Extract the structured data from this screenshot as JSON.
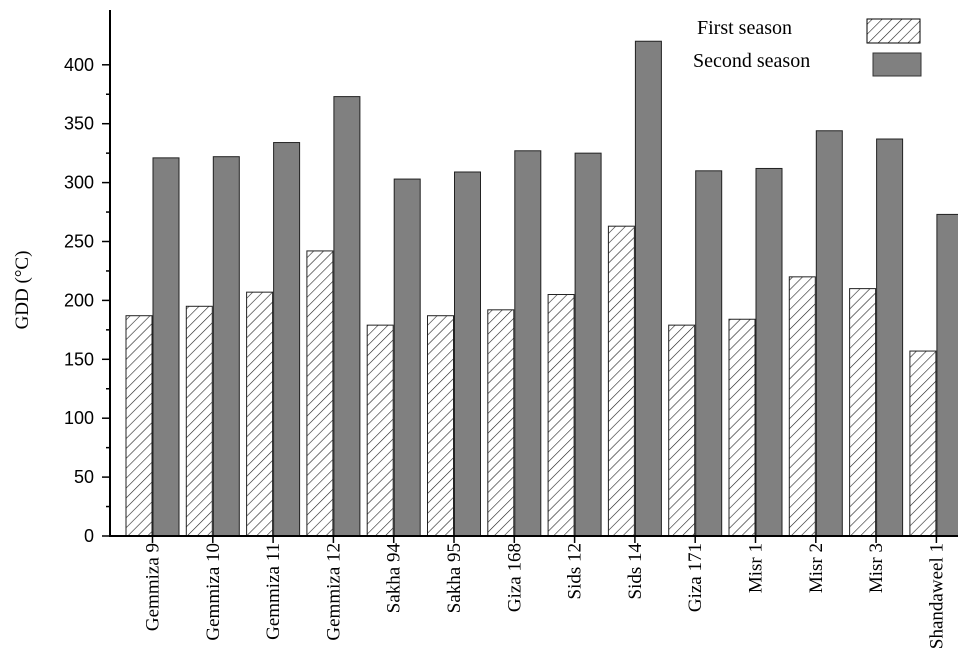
{
  "chart_data": {
    "type": "bar",
    "ylabel": "GDD (°C)",
    "ylim": [
      0,
      450
    ],
    "yticks": [
      0,
      50,
      100,
      150,
      200,
      250,
      300,
      350,
      400
    ],
    "categories": [
      "Gemmiza 9",
      "Gemmiza 10",
      "Gemmiza 11",
      "Gemmiza 12",
      "Sakha 94",
      "Sakha 95",
      "Giza 168",
      "Sids 12",
      "Sids 14",
      "Giza 171",
      "Misr 1",
      "Misr 2",
      "Misr 3",
      "Shandaweel 1"
    ],
    "series": [
      {
        "name": "First season",
        "pattern": "hatched",
        "color": "#ffffff",
        "values": [
          187,
          195,
          207,
          242,
          179,
          187,
          192,
          205,
          263,
          179,
          184,
          220,
          210,
          157
        ]
      },
      {
        "name": "Second season",
        "pattern": "solid",
        "color": "#808080",
        "values": [
          321,
          322,
          334,
          373,
          303,
          309,
          327,
          325,
          420,
          310,
          312,
          344,
          337,
          273
        ]
      }
    ],
    "legend_position": "top-right",
    "grid": false
  }
}
